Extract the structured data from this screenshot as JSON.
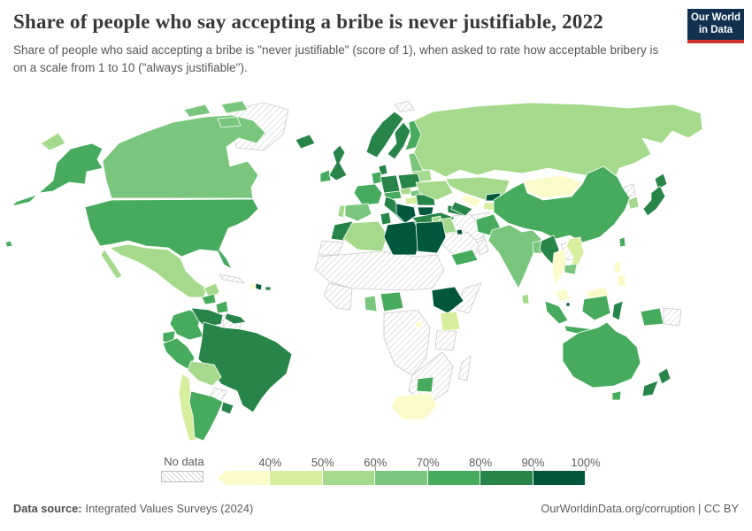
{
  "header": {
    "title": "Share of people who say accepting a bribe is never justifiable, 2022",
    "subtitle": "Share of people who said accepting a bribe is \"never justifiable\" (score of 1), when asked to rate how acceptable bribery is on a scale from 1 to 10 (\"always justifiable\").",
    "logo": {
      "line1": "Our World",
      "line2": "in Data",
      "bg": "#12304f",
      "accent": "#cf342e"
    }
  },
  "legend": {
    "no_data_label": "No data",
    "ticks": [
      "40%",
      "50%",
      "60%",
      "70%",
      "80%",
      "90%",
      "100%"
    ],
    "colors": [
      "#fbfbc9",
      "#d7ee9f",
      "#a5da8c",
      "#79c67c",
      "#47ab5e",
      "#28854a",
      "#01573c"
    ]
  },
  "footer": {
    "source_label": "Data source:",
    "source_value": "Integrated Values Surveys (2024)",
    "attribution": "OurWorldinData.org/corruption | CC BY"
  },
  "chart_data": {
    "type": "choropleth",
    "title": "Share of people who say accepting a bribe is never justifiable, 2022",
    "unit": "% answering never justifiable",
    "bins": [
      "<40%",
      "40-50%",
      "50-60%",
      "60-70%",
      "70-80%",
      "80-90%",
      "90-100%",
      "No data"
    ],
    "legend_position": "bottom"
  },
  "map": {
    "border_color": "#ffffff",
    "nodata_border": "#c9c9c9",
    "regions": {
      "greenland": 0,
      "svalbard": 0,
      "cuba": 0,
      "guyanas": 0,
      "paraguay": 0,
      "western-sahara": 0,
      "sahel": 0,
      "west-africa": 0,
      "central-africa": 0,
      "somalia": 0,
      "tanzania": 0,
      "southeast-africa": 0,
      "madagascar": 0,
      "afghanistan": 0,
      "iran": 0,
      "saudi-arabia": 0,
      "oman": 0,
      "laos": 0,
      "north-korea": 0,
      "papua-new-guinea": 0,
      "canada": 4,
      "canada-islands-1": 4,
      "canada-islands-2": 4,
      "canada-islands-3": 4,
      "usa": 5,
      "alaska": 5,
      "aleutians": 5,
      "hawaii": 5,
      "mexico": 3,
      "baja": 3,
      "yucatan": 3,
      "guatemala": 5,
      "nicaragua": 5,
      "panama-costa-rica": 6,
      "haiti": 1,
      "dominican-republic": 7,
      "puerto-rico": 6,
      "colombia": 5,
      "venezuela": 6,
      "ecuador": 5,
      "peru": 5,
      "brazil": 6,
      "bolivia": 3,
      "chile": 2,
      "argentina": 5,
      "uruguay": 6,
      "iceland": 6,
      "ireland": 5,
      "uk": 6,
      "norway": 6,
      "sweden": 6,
      "finland": 5,
      "denmark": 6,
      "baltics": 4,
      "germany": 6,
      "netherlands-belgium": 5,
      "poland": 6,
      "france": 5,
      "spain": 4,
      "portugal": 3,
      "italy": 6,
      "swiss-austria": 5,
      "czech": 3,
      "slovakia": 4,
      "hungary": 2,
      "balkans": 7,
      "greece": 6,
      "romania": 6,
      "bulgaria": 7,
      "ukraine": 3,
      "belarus": 3,
      "russia": 3,
      "chukotka": 3,
      "turkey": 6,
      "caucasus": 6,
      "levant": 3,
      "iraq": 3,
      "kuwait": 7,
      "yemen": 5,
      "kazakhstan": 3,
      "uzbekistan": 1,
      "turkmenistan": 6,
      "kyrgyzstan": 7,
      "tajikistan": 2,
      "pakistan": 5,
      "india": 4,
      "bangladesh": 4,
      "sri-lanka": 3,
      "myanmar": 6,
      "thailand": 1,
      "vietnam": 2,
      "cambodia": 4,
      "malaysia": 1,
      "borneo-malaysia": 1,
      "singapore": 7,
      "sumatra": 5,
      "java": 5,
      "borneo-indonesia": 5,
      "sulawesi": 6,
      "west-papua": 5,
      "philippines-north": 1,
      "philippines-south": 1,
      "mongolia": 1,
      "china": 5,
      "south-korea": 3,
      "taiwan": 5,
      "japan-hokkaido": 6,
      "japan-honshu": 6,
      "morocco": 6,
      "algeria": 3,
      "tunisia": 6,
      "libya": 7,
      "egypt": 7,
      "ghana": 4,
      "nigeria": 5,
      "ethiopia": 7,
      "kenya": 2,
      "rwanda": 1,
      "zimbabwe": 5,
      "south-africa": 1,
      "australia": 5,
      "tasmania": 5,
      "nz-north": 6,
      "nz-south": 6
    }
  }
}
